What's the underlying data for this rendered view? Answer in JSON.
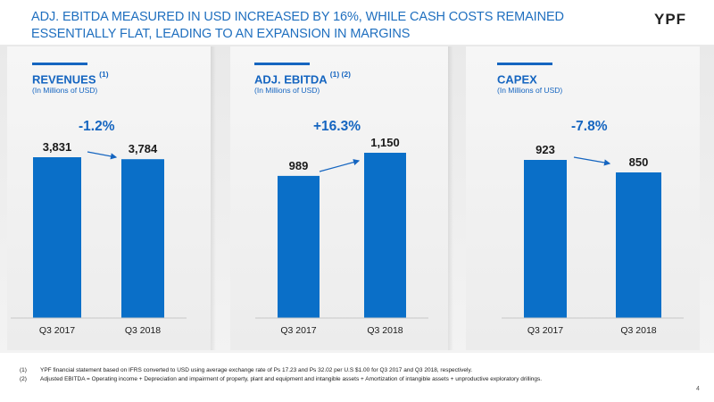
{
  "header": {
    "title": "ADJ. EBITDA MEASURED IN USD INCREASED BY 16%, WHILE CASH COSTS REMAINED ESSENTIALLY FLAT, LEADING TO AN EXPANSION IN MARGINS",
    "logo_text": "YPF"
  },
  "panels": [
    {
      "title": "REVENUES",
      "sup": "(1)",
      "subtitle": "(In Millions of USD)",
      "change": "-1.2%"
    },
    {
      "title": "ADJ. EBITDA",
      "sup": "(1) (2)",
      "subtitle": "(In Millions of USD)",
      "change": "+16.3%"
    },
    {
      "title": "CAPEX",
      "sup": "",
      "subtitle": "(In Millions of USD)",
      "change": "-7.8%"
    }
  ],
  "chart_data": [
    {
      "type": "bar",
      "title": "REVENUES",
      "categories": [
        "Q3 2017",
        "Q3 2018"
      ],
      "values": [
        3831,
        3784
      ],
      "labels": [
        "3,831",
        "3,784"
      ],
      "change": "-1.2%",
      "bar_color": "#0a6fc8"
    },
    {
      "type": "bar",
      "title": "ADJ. EBITDA",
      "categories": [
        "Q3 2017",
        "Q3 2018"
      ],
      "values": [
        989,
        1150
      ],
      "labels": [
        "989",
        "1,150"
      ],
      "change": "+16.3%",
      "bar_color": "#0a6fc8"
    },
    {
      "type": "bar",
      "title": "CAPEX",
      "categories": [
        "Q3 2017",
        "Q3 2018"
      ],
      "values": [
        923,
        850
      ],
      "labels": [
        "923",
        "850"
      ],
      "change": "-7.8%",
      "bar_color": "#0a6fc8"
    }
  ],
  "footnotes": [
    {
      "num": "(1)",
      "text": "YPF financial statement based on IFRS converted to USD using average exchange rate of Ps 17.23 and Ps 32.02 per U.S $1.00 for Q3 2017 and Q3 2018, respectively."
    },
    {
      "num": "(2)",
      "text": "Adjusted EBITDA = Operating income + Depreciation and impairment of property, plant and equipment and intangible assets + Amortization of intangible assets + unproductive exploratory drillings."
    }
  ],
  "page_number": "4"
}
